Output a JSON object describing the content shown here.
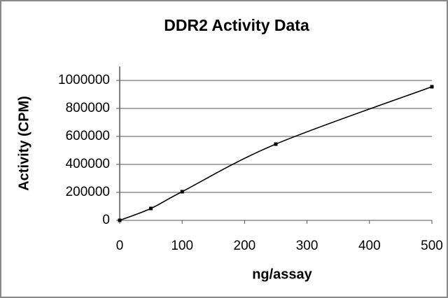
{
  "chart_data": {
    "type": "line",
    "title": "DDR2 Activity Data",
    "x_label": "ng/assay",
    "y_label": "Activity (CPM)",
    "x": [
      0,
      50,
      100,
      250,
      500
    ],
    "series": [
      {
        "name": "DDR2",
        "color": "#000000",
        "values": [
          0,
          85000,
          205000,
          545000,
          955000
        ]
      }
    ],
    "xlim": [
      0,
      500
    ],
    "xticks": [
      0,
      100,
      200,
      300,
      400,
      500
    ],
    "ylim": [
      0,
      1100000
    ],
    "yticks": [
      0,
      200000,
      400000,
      600000,
      800000,
      1000000
    ],
    "grid": true,
    "smooth": true
  }
}
